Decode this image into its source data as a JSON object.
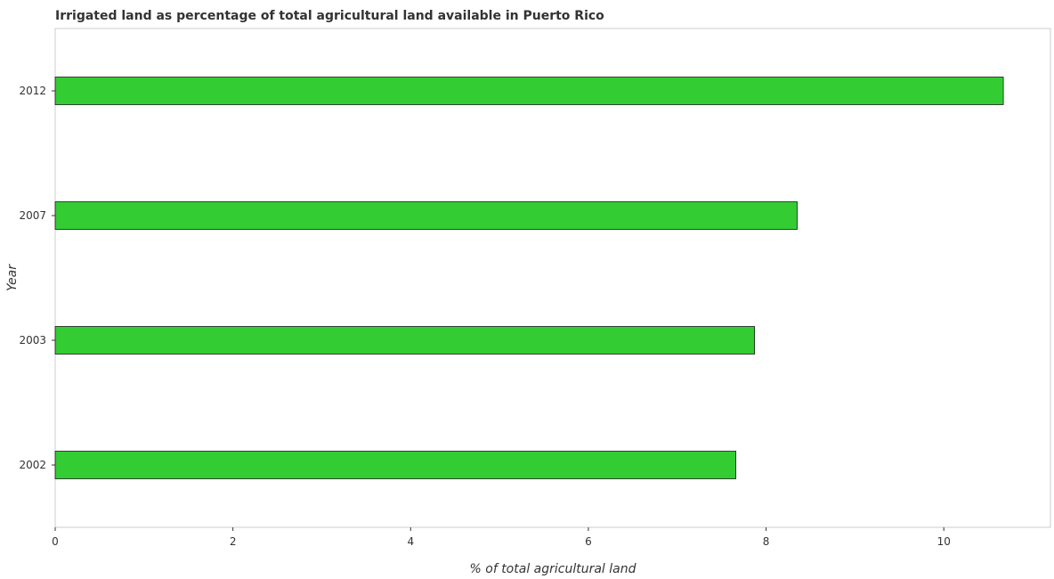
{
  "chart_data": {
    "type": "bar",
    "orientation": "horizontal",
    "title": "Irrigated land as percentage of total agricultural land available in Puerto Rico",
    "xlabel": "% of total agricultural land",
    "ylabel": "Year",
    "categories": [
      "2002",
      "2003",
      "2007",
      "2012"
    ],
    "values": [
      7.66,
      7.87,
      8.35,
      10.67
    ],
    "xlim": [
      0,
      11.2
    ],
    "xticks": [
      0,
      2,
      4,
      6,
      8,
      10
    ],
    "xtick_labels": [
      "0",
      "2",
      "4",
      "6",
      "8",
      "10"
    ],
    "bar_color": "#33cc33",
    "bar_edge_color": "#1a1a1a",
    "grid": false
  }
}
